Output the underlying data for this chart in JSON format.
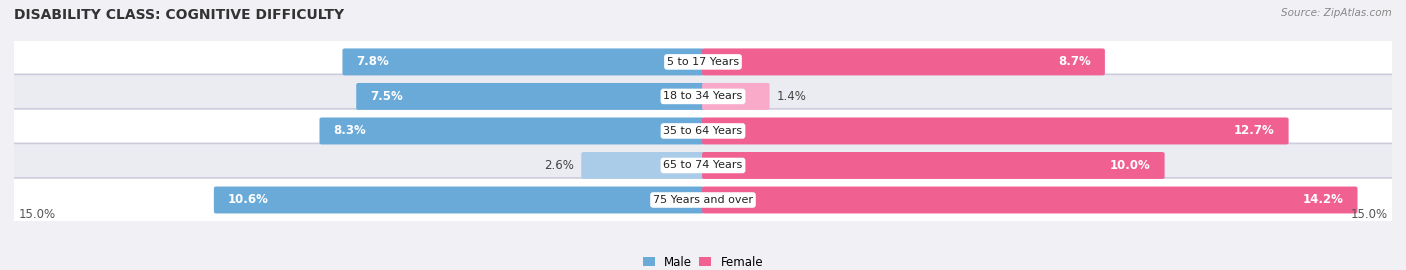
{
  "title": "DISABILITY CLASS: COGNITIVE DIFFICULTY",
  "source": "Source: ZipAtlas.com",
  "categories": [
    "5 to 17 Years",
    "18 to 34 Years",
    "35 to 64 Years",
    "65 to 74 Years",
    "75 Years and over"
  ],
  "male_values": [
    7.8,
    7.5,
    8.3,
    2.6,
    10.6
  ],
  "female_values": [
    8.7,
    1.4,
    12.7,
    10.0,
    14.2
  ],
  "x_max": 15.0,
  "male_color_dark": "#6aaad8",
  "male_color_light": "#aacce8",
  "female_color_dark": "#f06090",
  "female_color_light": "#f8aac8",
  "row_bg_color": "#e8e8f0",
  "row_alt_bg_color": "#d8d8e8",
  "title_fontsize": 10,
  "label_fontsize": 8.5,
  "axis_label_fontsize": 8.5,
  "category_fontsize": 8,
  "legend_male": "Male",
  "legend_female": "Female",
  "bg_color": "#f0f0f5"
}
